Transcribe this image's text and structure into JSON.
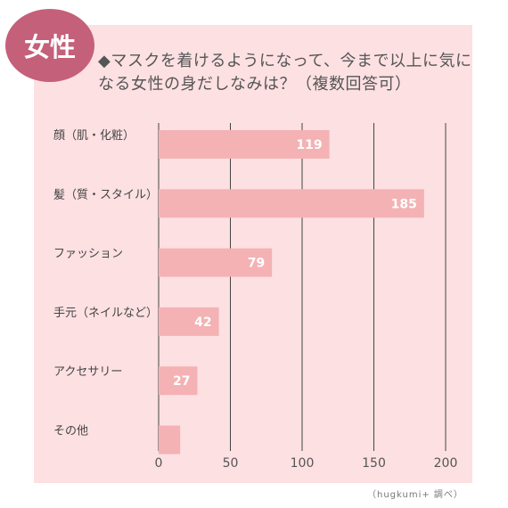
{
  "badge": "女性",
  "title": "◆マスクを着けるようになって、今まで以上に気になる女性の身だしなみは？（複数回答可）",
  "footnote": "（hugkumi+ 調べ）",
  "colors": {
    "bar": "#f4b2b4",
    "panel": "#fde0e2",
    "badge": "#c5607a",
    "grid": "#444444"
  },
  "chart_data": {
    "type": "bar",
    "orientation": "horizontal",
    "categories": [
      "顔（肌・化粧）",
      "髪（質・スタイル）",
      "ファッション",
      "手元（ネイルなど）",
      "アクセサリー",
      "その他"
    ],
    "values": [
      119,
      185,
      79,
      42,
      27,
      15
    ],
    "value_labels": [
      "119",
      "185",
      "79",
      "42",
      "27",
      ""
    ],
    "xlim": [
      0,
      200
    ],
    "xticks": [
      0,
      50,
      100,
      150,
      200
    ],
    "grid": "vertical"
  }
}
